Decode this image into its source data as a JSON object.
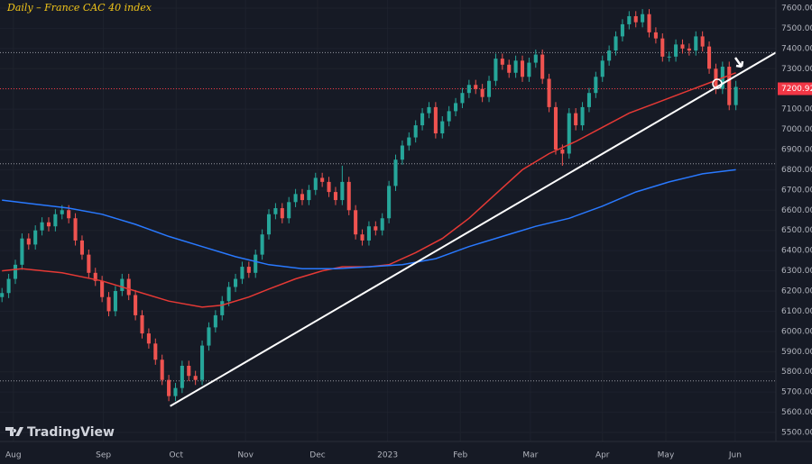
{
  "chart_data": {
    "type": "candlestick",
    "title": "Daily – France CAC 40 index",
    "brand": "TradingView",
    "up_color": "#26a69a",
    "down_color": "#ef5350",
    "grid": true,
    "xlim": [
      -0.3,
      116
    ],
    "ylim": [
      5500,
      7600
    ],
    "xticks": [
      {
        "value": 1.7,
        "label": "Aug"
      },
      {
        "value": 15.2,
        "label": "Sep"
      },
      {
        "value": 26.1,
        "label": "Oct"
      },
      {
        "value": 36.5,
        "label": "Nov"
      },
      {
        "value": 47.3,
        "label": "Dec"
      },
      {
        "value": 57.8,
        "label": "2023"
      },
      {
        "value": 68.7,
        "label": "Feb"
      },
      {
        "value": 79.2,
        "label": "Mar"
      },
      {
        "value": 90.0,
        "label": "Apr"
      },
      {
        "value": 99.5,
        "label": "May"
      },
      {
        "value": 109.9,
        "label": "Jun"
      }
    ],
    "yticks": [
      {
        "value": 5500,
        "label": "5500.00"
      },
      {
        "value": 5600,
        "label": "5600.00"
      },
      {
        "value": 5700,
        "label": "5700.00"
      },
      {
        "value": 5800,
        "label": "5800.00"
      },
      {
        "value": 5900,
        "label": "5900.00"
      },
      {
        "value": 6000,
        "label": "6000.00"
      },
      {
        "value": 6100,
        "label": "6100.00"
      },
      {
        "value": 6200,
        "label": "6200.00"
      },
      {
        "value": 6300,
        "label": "6300.00"
      },
      {
        "value": 6400,
        "label": "6400.00"
      },
      {
        "value": 6500,
        "label": "6500.00"
      },
      {
        "value": 6600,
        "label": "6600.00"
      },
      {
        "value": 6700,
        "label": "6700.00"
      },
      {
        "value": 6800,
        "label": "6800.00"
      },
      {
        "value": 6900,
        "label": "6900.00"
      },
      {
        "value": 7000,
        "label": "7000.00"
      },
      {
        "value": 7100,
        "label": "7100.00"
      },
      {
        "value": 7200,
        "label": "7200.00"
      },
      {
        "value": 7300,
        "label": "7300.00"
      },
      {
        "value": 7400,
        "label": "7400.00"
      },
      {
        "value": 7500,
        "label": "7500.00"
      },
      {
        "value": 7600,
        "label": "7600.00"
      }
    ],
    "last_price": 7200.92,
    "last_price_color": "#f23645",
    "levels": [
      7380,
      6830,
      5755
    ],
    "level_color": "#9598a1",
    "candles": {
      "open": [
        6170,
        6190,
        6260,
        6330,
        6460,
        6430,
        6500,
        6540,
        6520,
        6580,
        6600,
        6560,
        6450,
        6380,
        6290,
        6250,
        6170,
        6100,
        6200,
        6260,
        6180,
        6080,
        5990,
        5940,
        5860,
        5760,
        5680,
        5720,
        5830,
        5780,
        5760,
        5930,
        6020,
        6080,
        6150,
        6220,
        6260,
        6320,
        6290,
        6380,
        6480,
        6580,
        6610,
        6560,
        6640,
        6680,
        6650,
        6700,
        6760,
        6740,
        6690,
        6650,
        6740,
        6600,
        6480,
        6450,
        6520,
        6500,
        6560,
        6720,
        6850,
        6920,
        6960,
        7020,
        7080,
        7110,
        6980,
        7040,
        7090,
        7130,
        7180,
        7220,
        7200,
        7160,
        7240,
        7350,
        7320,
        7280,
        7340,
        7260,
        7330,
        7370,
        7250,
        7110,
        6900,
        6880,
        7080,
        7020,
        7110,
        7180,
        7260,
        7340,
        7390,
        7460,
        7520,
        7560,
        7530,
        7570,
        7480,
        7450,
        7360,
        7360,
        7420,
        7400,
        7390,
        7460,
        7410,
        7300,
        7200,
        7310,
        7120
      ],
      "high": [
        6215,
        6285,
        6355,
        6485,
        6485,
        6525,
        6565,
        6565,
        6605,
        6625,
        6625,
        6585,
        6475,
        6405,
        6315,
        6275,
        6195,
        6225,
        6285,
        6285,
        6205,
        6105,
        6015,
        5965,
        5885,
        5785,
        5745,
        5855,
        5855,
        5805,
        5955,
        6045,
        6105,
        6175,
        6245,
        6285,
        6345,
        6345,
        6405,
        6505,
        6605,
        6635,
        6635,
        6665,
        6705,
        6705,
        6725,
        6785,
        6785,
        6765,
        6715,
        6820,
        6765,
        6625,
        6505,
        6545,
        6545,
        6585,
        6745,
        6875,
        6945,
        6985,
        7045,
        7105,
        7135,
        7135,
        7065,
        7115,
        7155,
        7205,
        7245,
        7245,
        7225,
        7265,
        7375,
        7375,
        7345,
        7365,
        7365,
        7355,
        7395,
        7395,
        7275,
        7135,
        6925,
        7105,
        7105,
        7135,
        7205,
        7285,
        7365,
        7415,
        7485,
        7545,
        7585,
        7585,
        7595,
        7595,
        7505,
        7475,
        7385,
        7445,
        7445,
        7425,
        7485,
        7485,
        7435,
        7325,
        7335,
        7335,
        7240
      ],
      "low": [
        6145,
        6165,
        6235,
        6305,
        6405,
        6405,
        6475,
        6495,
        6495,
        6555,
        6535,
        6425,
        6355,
        6265,
        6225,
        6145,
        6075,
        6075,
        6175,
        6155,
        6055,
        5965,
        5915,
        5835,
        5735,
        5655,
        5655,
        5695,
        5755,
        5735,
        5735,
        5905,
        5995,
        6055,
        6125,
        6195,
        6235,
        6265,
        6265,
        6355,
        6455,
        6555,
        6535,
        6535,
        6615,
        6625,
        6625,
        6675,
        6715,
        6665,
        6625,
        6625,
        6575,
        6455,
        6425,
        6425,
        6475,
        6475,
        6535,
        6695,
        6825,
        6895,
        6935,
        6995,
        7055,
        6955,
        6955,
        7015,
        7065,
        7105,
        7155,
        7175,
        7135,
        7135,
        7215,
        7295,
        7255,
        7255,
        7235,
        7235,
        7305,
        7225,
        7085,
        6875,
        6820,
        6855,
        6995,
        6995,
        7085,
        7155,
        7235,
        7315,
        7365,
        7435,
        7495,
        7505,
        7505,
        7455,
        7425,
        7335,
        7335,
        7335,
        7375,
        7365,
        7365,
        7385,
        7275,
        7175,
        7175,
        7095,
        7095
      ],
      "close": [
        6190,
        6260,
        6330,
        6460,
        6430,
        6500,
        6540,
        6520,
        6580,
        6600,
        6560,
        6450,
        6380,
        6290,
        6250,
        6170,
        6100,
        6200,
        6260,
        6180,
        6080,
        5990,
        5940,
        5860,
        5760,
        5680,
        5720,
        5830,
        5780,
        5760,
        5930,
        6020,
        6080,
        6150,
        6220,
        6260,
        6320,
        6290,
        6380,
        6480,
        6580,
        6610,
        6560,
        6640,
        6680,
        6650,
        6700,
        6760,
        6740,
        6690,
        6650,
        6740,
        6600,
        6480,
        6450,
        6520,
        6500,
        6560,
        6720,
        6850,
        6920,
        6960,
        7020,
        7080,
        7110,
        6980,
        7040,
        7090,
        7130,
        7180,
        7220,
        7200,
        7160,
        7240,
        7350,
        7320,
        7280,
        7340,
        7260,
        7330,
        7370,
        7250,
        7110,
        6900,
        6880,
        7080,
        7020,
        7110,
        7180,
        7260,
        7340,
        7390,
        7460,
        7520,
        7560,
        7530,
        7570,
        7480,
        7450,
        7360,
        7360,
        7420,
        7400,
        7390,
        7460,
        7410,
        7300,
        7200,
        7310,
        7120,
        7210
      ]
    },
    "series": [
      {
        "color": "#e53935",
        "x": [
          0,
          3,
          9,
          15,
          20,
          25,
          30,
          33,
          37,
          40,
          44,
          48,
          51,
          55,
          58,
          62,
          66,
          70,
          74,
          78,
          82,
          86,
          90,
          94,
          98,
          102,
          106,
          110
        ],
        "values": [
          6300,
          6310,
          6290,
          6250,
          6200,
          6150,
          6120,
          6130,
          6170,
          6210,
          6260,
          6300,
          6320,
          6320,
          6330,
          6390,
          6460,
          6560,
          6680,
          6800,
          6880,
          6940,
          7010,
          7080,
          7130,
          7180,
          7230,
          7280
        ]
      },
      {
        "color": "#2979ff",
        "x": [
          0,
          5,
          10,
          15,
          20,
          25,
          30,
          35,
          40,
          45,
          50,
          55,
          60,
          65,
          70,
          75,
          80,
          85,
          90,
          95,
          100,
          105,
          110
        ],
        "values": [
          6650,
          6630,
          6610,
          6580,
          6530,
          6470,
          6420,
          6370,
          6330,
          6310,
          6310,
          6320,
          6330,
          6360,
          6420,
          6470,
          6520,
          6560,
          6620,
          6690,
          6740,
          6780,
          6800
        ]
      },
      {
        "color": "#ffffff",
        "x": [
          25.2,
          116
        ],
        "values": [
          5630,
          7380
        ]
      }
    ]
  }
}
